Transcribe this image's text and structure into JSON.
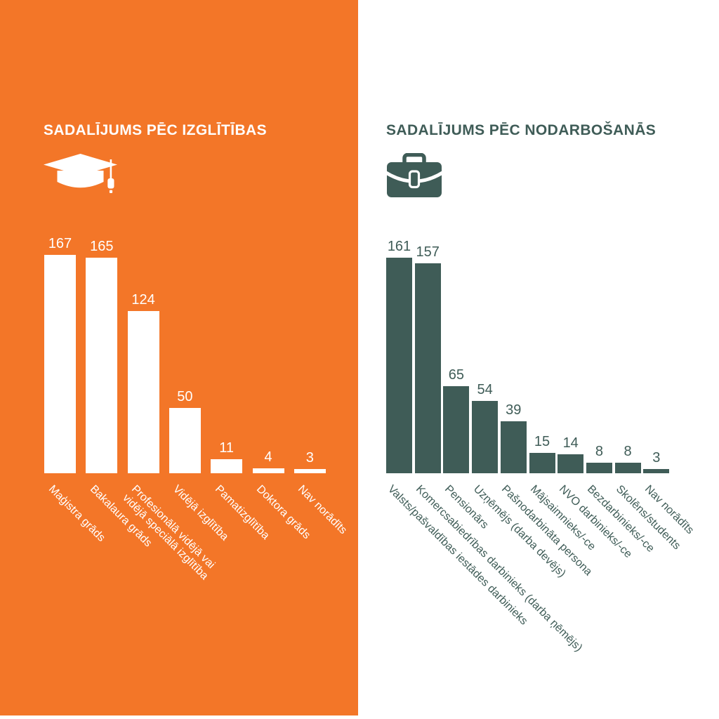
{
  "page": {
    "orange": "#F37628",
    "teal": "#3F5C57",
    "white": "#FFFFFF",
    "background": "#FFFFFF"
  },
  "icons": {
    "education": "graduation-cap-icon",
    "occupation": "briefcase-icon"
  },
  "chart_data": [
    {
      "type": "bar",
      "title": "SADALĪJUMS PĒC IZGLĪTĪBAS",
      "categories": [
        "Maģistra grāds",
        "Bakalaura grāds",
        "Profesionālā vidējā vai\nvidējā speciālā izglītība",
        "Vidējā izglītība",
        "Pamatizglītība",
        "Doktora grāds",
        "Nav norādīts"
      ],
      "values": [
        167,
        165,
        124,
        50,
        11,
        4,
        3
      ],
      "value_labels_shown": true,
      "category_label_rotation_deg": 45,
      "grid": false,
      "axes_shown": false,
      "background": "#F37628",
      "bar_color": "#FFFFFF",
      "label_color": "#FFFFFF"
    },
    {
      "type": "bar",
      "title": "SADALĪJUMS PĒC NODARBOŠANĀS",
      "categories": [
        "Valsts/pašvaldības iestādes darbinieks",
        "Komercsabiedrības darbinieks (darba ņēmējs)",
        "Pensionārs",
        "Uzņēmējs (darba devējs)",
        "Pašnodarbināta persona",
        "Mājsaimnieks/-ce",
        "NVO darbinieks/-ce",
        "Bezdarbinieks/-ce",
        "Skolēns/students",
        "Nav norādīts"
      ],
      "values": [
        161,
        157,
        65,
        54,
        39,
        15,
        14,
        8,
        8,
        3
      ],
      "value_labels_shown": true,
      "category_label_rotation_deg": 45,
      "grid": false,
      "axes_shown": false,
      "background": "#FFFFFF",
      "bar_color": "#3F5C57",
      "label_color": "#3F5C57"
    }
  ]
}
